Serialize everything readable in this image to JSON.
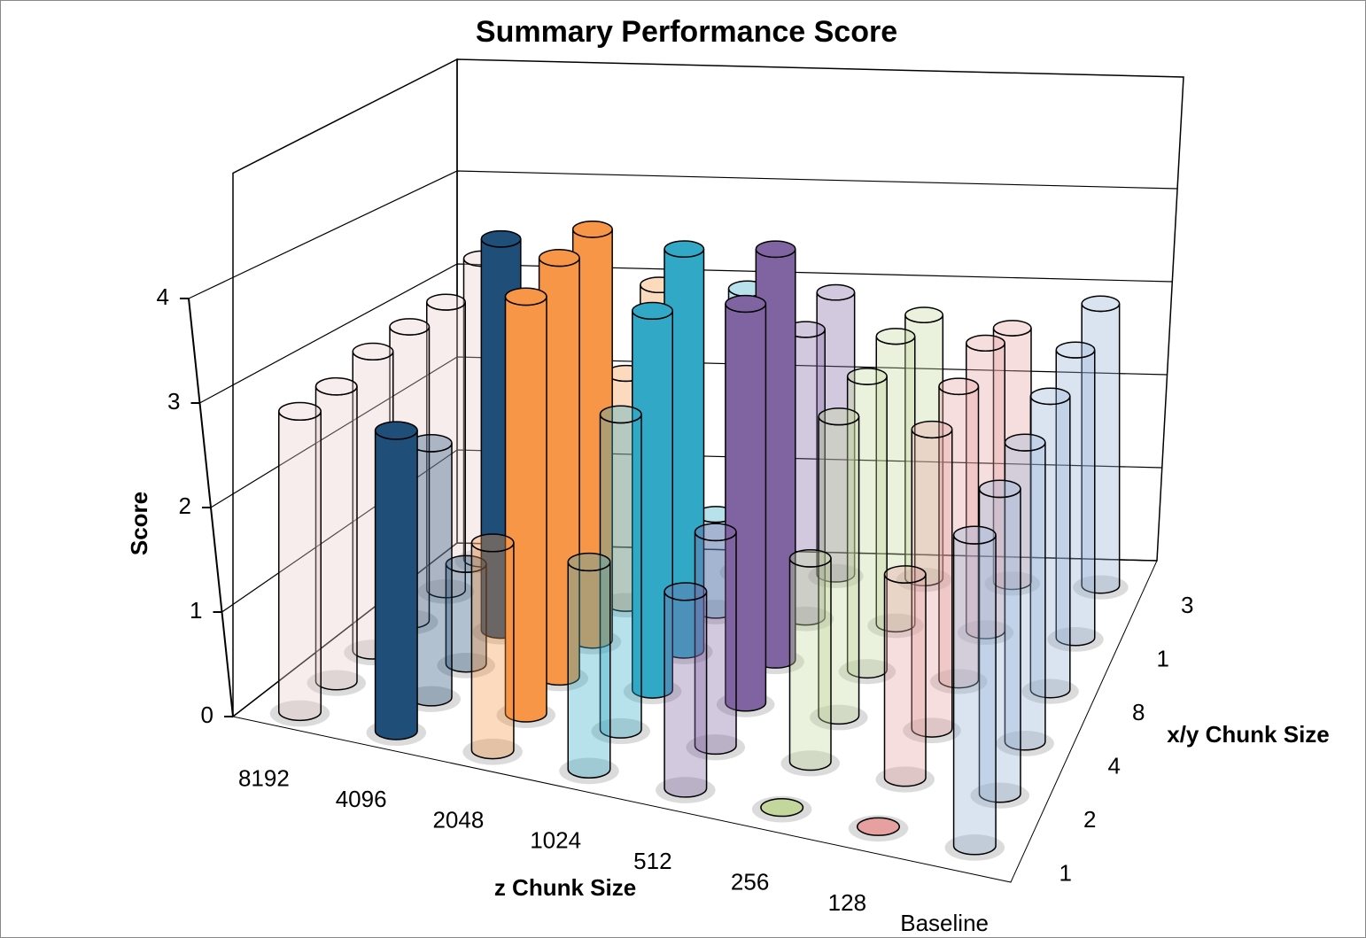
{
  "chart_data": {
    "type": "bar3d",
    "title": "Summary Performance Score",
    "y_label": "Score",
    "x_label": "z Chunk Size",
    "depth_label": "x/y Chunk Size",
    "categories": [
      "8192",
      "4096",
      "2048",
      "1024",
      "512",
      "256",
      "128",
      "Baseline"
    ],
    "depth_categories": [
      "1",
      "2",
      "4",
      "8",
      "1",
      "3"
    ],
    "category_colors": [
      "#e8cccc",
      "#1f4e79",
      "#f79646",
      "#31a9c6",
      "#8064a2",
      "#c3d69b",
      "#e6a0a0",
      "#95b3d7"
    ],
    "values": [
      [
        2.9,
        2.9,
        2.0,
        2.0,
        1.9,
        0,
        0,
        3.0
      ],
      [
        2.9,
        2.5,
        4.1,
        3.1,
        2.1,
        2.0,
        2.0,
        3.0
      ],
      [
        3.0,
        1.0,
        4.2,
        3.8,
        4.0,
        3.0,
        3.0,
        3.0
      ],
      [
        3.0,
        4.0,
        4.2,
        4.1,
        4.2,
        3.0,
        3.0,
        3.0
      ],
      [
        3.0,
        2.6,
        2.4,
        1.0,
        3.0,
        3.0,
        3.0,
        3.0
      ],
      [
        3.2,
        3.0,
        3.0,
        3.0,
        3.0,
        2.8,
        2.7,
        3.0
      ]
    ],
    "highlight": [
      [
        0,
        1
      ],
      [
        3,
        1
      ],
      [
        1,
        2
      ],
      [
        2,
        2
      ],
      [
        3,
        2
      ],
      [
        2,
        3
      ],
      [
        3,
        3
      ],
      [
        2,
        4
      ],
      [
        3,
        4
      ]
    ],
    "ylim": [
      0,
      4
    ],
    "yticks": [
      0,
      1,
      2,
      3,
      4
    ],
    "grid": true
  }
}
